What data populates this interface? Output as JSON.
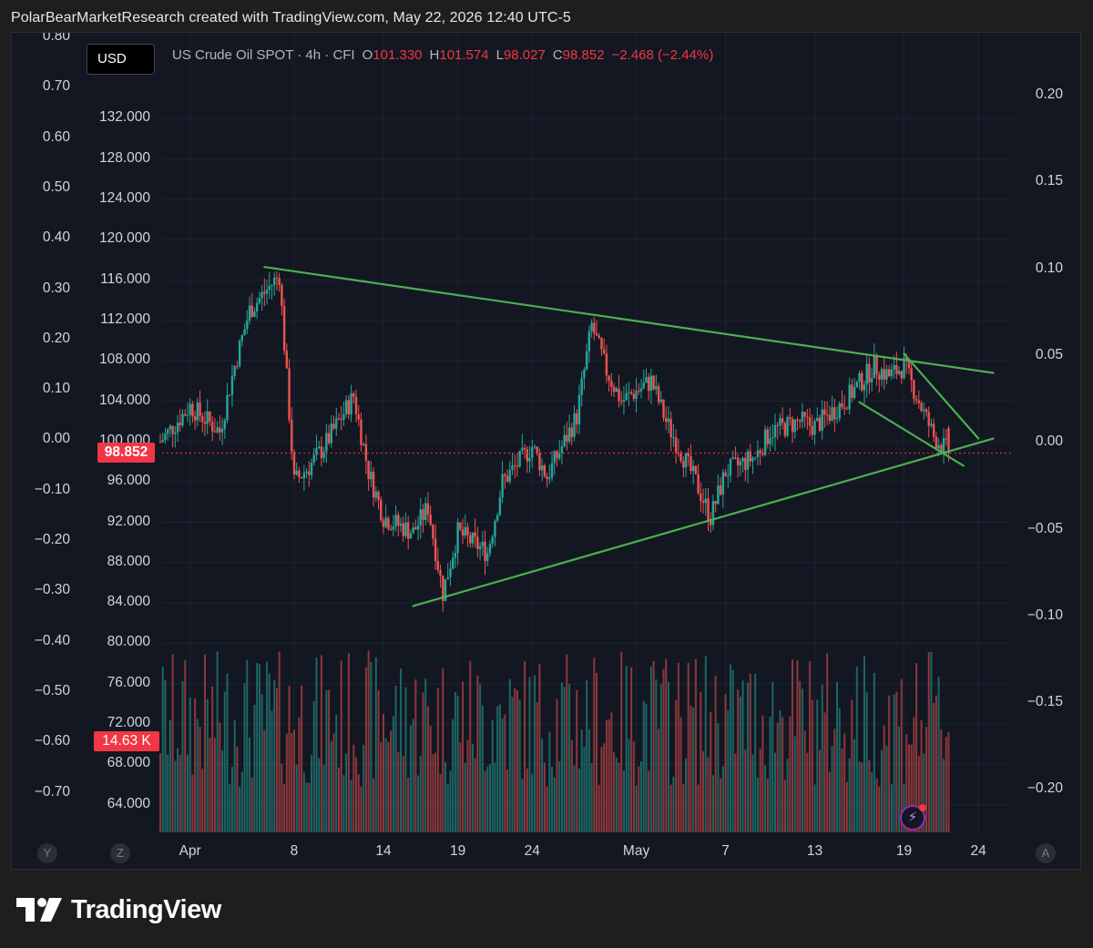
{
  "header": {
    "credit": "PolarBearMarketResearch created with TradingView.com, May 22, 2026 12:40 UTC-5"
  },
  "toolbar": {
    "currency_label": "USD"
  },
  "legend": {
    "symbol": "US Crude Oil SPOT · 4h · CFI",
    "open_key": "O",
    "open": "101.330",
    "high_key": "H",
    "high": "101.574",
    "low_key": "L",
    "low": "98.027",
    "close_key": "C",
    "close": "98.852",
    "change": "−2.468 (−2.44%)"
  },
  "price_scale": {
    "ticks": [
      "132.000",
      "128.000",
      "124.000",
      "120.000",
      "116.000",
      "112.000",
      "108.000",
      "104.000",
      "100.000",
      "96.000",
      "92.000",
      "88.000",
      "84.000",
      "80.000",
      "76.000",
      "72.000",
      "68.000",
      "64.000"
    ],
    "tick_values": [
      132,
      128,
      124,
      120,
      116,
      112,
      108,
      104,
      100,
      96,
      92,
      88,
      84,
      80,
      76,
      72,
      68,
      64
    ],
    "last_price_label": "98.852",
    "last_price": 98.852
  },
  "left_scale": {
    "ticks": [
      "0.80",
      "0.70",
      "0.60",
      "0.50",
      "0.40",
      "0.30",
      "0.20",
      "0.10",
      "0.00",
      "−0.10",
      "−0.20",
      "−0.30",
      "−0.40",
      "−0.50",
      "−0.60",
      "−0.70"
    ]
  },
  "right_scale": {
    "ticks": [
      "0.20",
      "0.15",
      "0.10",
      "0.05",
      "0.00",
      "−0.05",
      "−0.10",
      "−0.15",
      "−0.20"
    ]
  },
  "time_axis": {
    "labels": [
      "Apr",
      "8",
      "14",
      "19",
      "24",
      "May",
      "7",
      "13",
      "19",
      "24"
    ],
    "corner_left_1": "Y",
    "corner_left_2": "Z",
    "corner_right": "A"
  },
  "volume": {
    "last_label": "14.63 K"
  },
  "footer": {
    "brand": "TradingView"
  },
  "colors": {
    "up": "#26a69a",
    "down": "#ef5350",
    "trendline": "#4caf50",
    "background": "#131722",
    "price_tag": "#f23645"
  },
  "icons": {
    "flash": "lightning-icon",
    "logo": "tradingview-logo-icon"
  },
  "chart_data": {
    "type": "candlestick",
    "title": "US Crude Oil SPOT · 4h · CFI",
    "x_axis": [
      "Apr",
      "8",
      "14",
      "19",
      "24",
      "May",
      "7",
      "13",
      "19",
      "24"
    ],
    "y_range": [
      62,
      134
    ],
    "anchors": [
      {
        "x": "Mar 30",
        "close": 100.0
      },
      {
        "x": "Apr 1",
        "close": 103.5
      },
      {
        "x": "Apr 3",
        "close": 101.0
      },
      {
        "x": "Apr 4",
        "close": 107.5
      },
      {
        "x": "Apr 5",
        "close": 113.0
      },
      {
        "x": "Apr 7",
        "close": 116.5
      },
      {
        "x": "Apr 8",
        "close": 96.0
      },
      {
        "x": "Apr 9",
        "close": 97.5
      },
      {
        "x": "Apr 10",
        "close": 99.5
      },
      {
        "x": "Apr 12",
        "close": 104.5
      },
      {
        "x": "Apr 13",
        "close": 97.0
      },
      {
        "x": "Apr 14",
        "close": 92.5
      },
      {
        "x": "Apr 16",
        "close": 91.0
      },
      {
        "x": "Apr 17",
        "close": 93.5
      },
      {
        "x": "Apr 18",
        "close": 85.0
      },
      {
        "x": "Apr 19",
        "close": 91.0
      },
      {
        "x": "Apr 21",
        "close": 89.0
      },
      {
        "x": "Apr 22",
        "close": 96.0
      },
      {
        "x": "Apr 24",
        "close": 99.5
      },
      {
        "x": "Apr 25",
        "close": 96.5
      },
      {
        "x": "Apr 27",
        "close": 102.5
      },
      {
        "x": "Apr 28",
        "close": 111.5
      },
      {
        "x": "Apr 29",
        "close": 107.0
      },
      {
        "x": "Apr 30",
        "close": 104.0
      },
      {
        "x": "May 2",
        "close": 106.0
      },
      {
        "x": "May 3",
        "close": 102.0
      },
      {
        "x": "May 5",
        "close": 96.0
      },
      {
        "x": "May 6",
        "close": 92.5
      },
      {
        "x": "May 7",
        "close": 97.0
      },
      {
        "x": "May 9",
        "close": 98.5
      },
      {
        "x": "May 10",
        "close": 101.0
      },
      {
        "x": "May 12",
        "close": 102.0
      },
      {
        "x": "May 13",
        "close": 101.5
      },
      {
        "x": "May 15",
        "close": 104.0
      },
      {
        "x": "May 17",
        "close": 107.5
      },
      {
        "x": "May 18",
        "close": 106.5
      },
      {
        "x": "May 19",
        "close": 107.5
      },
      {
        "x": "May 20",
        "close": 104.0
      },
      {
        "x": "May 21",
        "close": 100.5
      },
      {
        "x": "May 22",
        "close": 98.9
      }
    ],
    "trendlines": [
      {
        "from": {
          "x": "Apr 6",
          "y": 117.3
        },
        "to": {
          "x": "May 25",
          "y": 106.8
        }
      },
      {
        "from": {
          "x": "Apr 16",
          "y": 83.7
        },
        "to": {
          "x": "May 25",
          "y": 100.3
        }
      },
      {
        "from": {
          "x": "May 19",
          "y": 108.7
        },
        "to": {
          "x": "May 24",
          "y": 100.3
        }
      },
      {
        "from": {
          "x": "May 16",
          "y": 103.9
        },
        "to": {
          "x": "May 23",
          "y": 97.6
        }
      }
    ],
    "last_close": 98.852,
    "last_volume": "14.63 K",
    "legend_position": "top-left"
  }
}
